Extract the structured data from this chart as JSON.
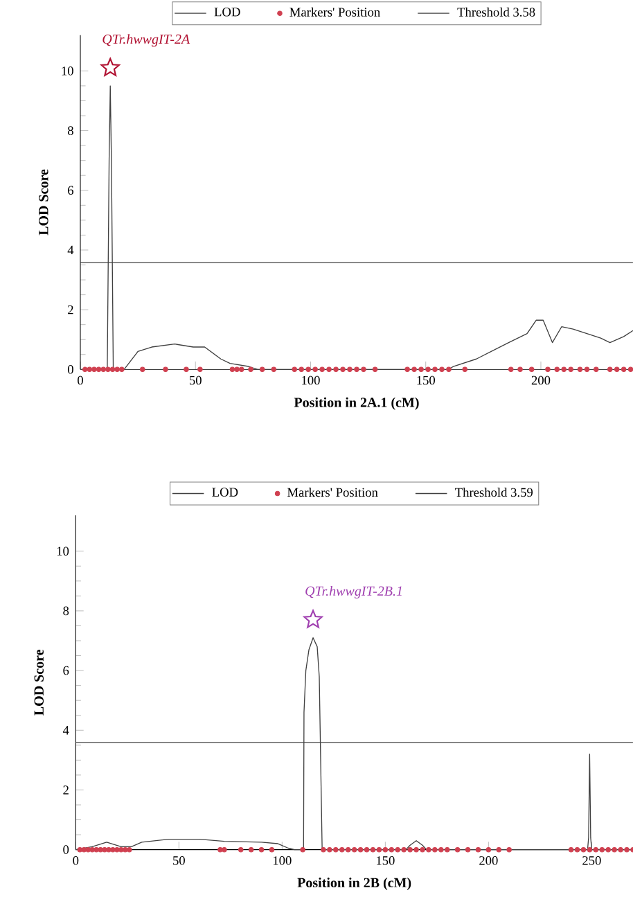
{
  "chart_data": [
    {
      "type": "line",
      "xlabel": "Position in 2A.1 (cM)",
      "ylabel": "LOD Score",
      "xlim": [
        0,
        240
      ],
      "xticks": [
        0,
        50,
        100,
        150,
        200
      ],
      "ylim": [
        0,
        11.2
      ],
      "yticks": [
        0,
        2,
        4,
        6,
        8,
        10
      ],
      "legend": "top",
      "series": [
        {
          "name": "LOD",
          "color": "#404040",
          "x": [
            0,
            11.7,
            12.5,
            13,
            13.5,
            14.3,
            19,
            25,
            31,
            41,
            49,
            54,
            61,
            65,
            73,
            77,
            160,
            162,
            172,
            186,
            194,
            198,
            201,
            205,
            209,
            214,
            226,
            230,
            236,
            240
          ],
          "values": [
            0,
            0,
            7,
            9.5,
            7,
            0,
            0,
            0.6,
            0.75,
            0.85,
            0.75,
            0.75,
            0.35,
            0.2,
            0.1,
            0,
            0,
            0.1,
            0.35,
            0.9,
            1.2,
            1.65,
            1.65,
            0.9,
            1.43,
            1.35,
            1.05,
            0.9,
            1.1,
            1.3
          ]
        },
        {
          "name": "Markers' Position",
          "type": "scatter",
          "marker": "circle",
          "color": "#d04050",
          "x": [
            2,
            4,
            6,
            8,
            10,
            12,
            14,
            16,
            18,
            27,
            37,
            46,
            52,
            66,
            68,
            70,
            74,
            79,
            84,
            93,
            96,
            99,
            102,
            105,
            108,
            111,
            114,
            117,
            120,
            123,
            128,
            142,
            145,
            148,
            151,
            154,
            157,
            160,
            167,
            187,
            191,
            196,
            203,
            207,
            210,
            213,
            217,
            220,
            224,
            230,
            233,
            236,
            239
          ],
          "values": [
            0,
            0,
            0,
            0,
            0,
            0,
            0,
            0,
            0,
            0,
            0,
            0,
            0,
            0,
            0,
            0,
            0,
            0,
            0,
            0,
            0,
            0,
            0,
            0,
            0,
            0,
            0,
            0,
            0,
            0,
            0,
            0,
            0,
            0,
            0,
            0,
            0,
            0,
            0,
            0,
            0,
            0,
            0,
            0,
            0,
            0,
            0,
            0,
            0,
            0,
            0,
            0,
            0
          ]
        },
        {
          "type": "scatter",
          "marker": "star",
          "color": "#b01030",
          "x": [
            13
          ],
          "values": [
            10.1
          ]
        }
      ],
      "ref_lines": [
        {
          "axis": "y",
          "value": 3.58,
          "label": "Threshold 3.58",
          "color": "#404040"
        }
      ],
      "annotations": [
        "QTr.hwwgIT-2A"
      ]
    },
    {
      "type": "line",
      "xlabel": "Position in 2B (cM)",
      "ylabel": "LOD Score",
      "xlim": [
        0,
        270
      ],
      "xticks": [
        0,
        50,
        100,
        150,
        200,
        250
      ],
      "ylim": [
        0,
        11.2
      ],
      "yticks": [
        0,
        2,
        4,
        6,
        8,
        10
      ],
      "legend": "top",
      "series": [
        {
          "name": "LOD",
          "color": "#404040",
          "x": [
            0,
            8,
            15,
            22,
            27,
            32,
            45,
            60,
            72,
            90,
            98,
            103,
            106,
            110.4,
            110.6,
            111.5,
            113,
            115,
            117,
            118,
            119.4,
            160,
            162,
            165,
            168,
            170,
            248,
            248.5,
            249,
            249.5,
            250,
            270
          ],
          "values": [
            0,
            0.1,
            0.25,
            0.1,
            0.1,
            0.25,
            0.35,
            0.35,
            0.28,
            0.25,
            0.2,
            0.05,
            0,
            0,
            4.6,
            6,
            6.7,
            7.1,
            6.8,
            5.8,
            0,
            0,
            0.15,
            0.3,
            0.15,
            0,
            0,
            0.4,
            3.2,
            0.4,
            0,
            0
          ]
        },
        {
          "name": "Markers' Position",
          "type": "scatter",
          "marker": "circle",
          "color": "#d04050",
          "x": [
            2,
            4,
            6,
            8,
            10,
            12,
            14,
            16,
            18,
            20,
            22,
            24,
            26,
            70,
            72,
            80,
            85,
            90,
            95,
            110,
            120,
            123,
            126,
            129,
            132,
            135,
            138,
            141,
            144,
            147,
            150,
            153,
            156,
            159,
            162,
            165,
            168,
            171,
            174,
            177,
            180,
            185,
            190,
            195,
            200,
            205,
            210,
            240,
            243,
            246,
            249,
            252,
            255,
            258,
            261,
            264,
            267,
            270
          ],
          "values": [
            0,
            0,
            0,
            0,
            0,
            0,
            0,
            0,
            0,
            0,
            0,
            0,
            0,
            0,
            0,
            0,
            0,
            0,
            0,
            0,
            0,
            0,
            0,
            0,
            0,
            0,
            0,
            0,
            0,
            0,
            0,
            0,
            0,
            0,
            0,
            0,
            0,
            0,
            0,
            0,
            0,
            0,
            0,
            0,
            0,
            0,
            0,
            0,
            0,
            0,
            0,
            0,
            0,
            0,
            0,
            0,
            0,
            0
          ]
        },
        {
          "type": "scatter",
          "marker": "star",
          "color": "#a040b0",
          "x": [
            115
          ],
          "values": [
            7.7
          ]
        }
      ],
      "ref_lines": [
        {
          "axis": "y",
          "value": 3.59,
          "label": "Threshold 3.59",
          "color": "#404040"
        }
      ],
      "annotations": [
        "QTr.hwwgIT-2B.1"
      ]
    }
  ]
}
